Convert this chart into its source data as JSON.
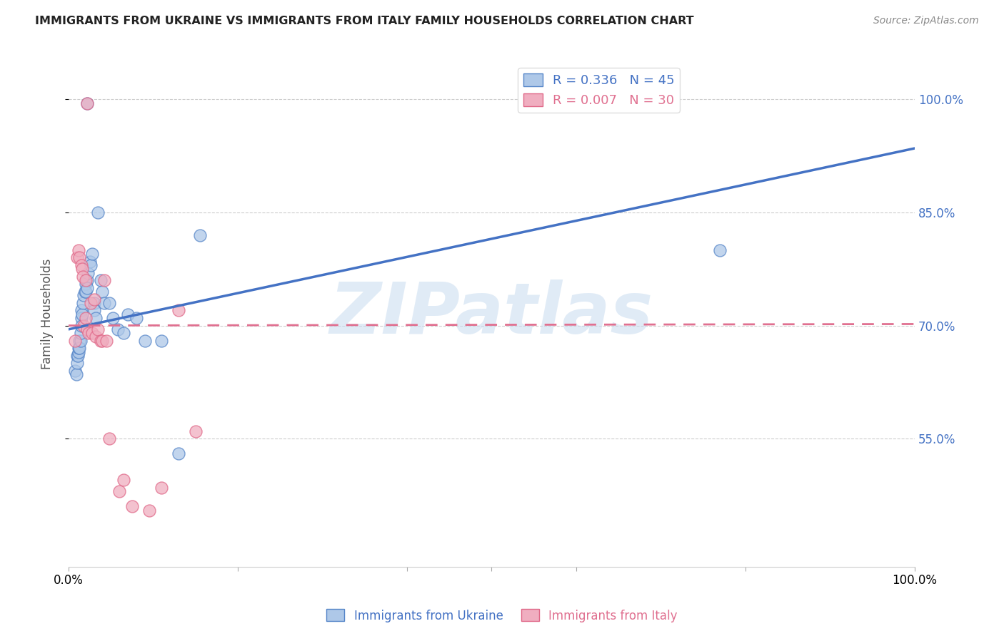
{
  "title": "IMMIGRANTS FROM UKRAINE VS IMMIGRANTS FROM ITALY FAMILY HOUSEHOLDS CORRELATION CHART",
  "source": "Source: ZipAtlas.com",
  "ylabel": "Family Households",
  "ytick_labels": [
    "100.0%",
    "85.0%",
    "70.0%",
    "55.0%"
  ],
  "ytick_vals": [
    1.0,
    0.85,
    0.7,
    0.55
  ],
  "xlim": [
    0.0,
    1.0
  ],
  "ylim": [
    0.38,
    1.05
  ],
  "watermark": "ZIPatlas",
  "ukraine_color": "#aec8e8",
  "italy_color": "#f0aec0",
  "ukraine_edge_color": "#5585c8",
  "italy_edge_color": "#e06888",
  "ukraine_line_color": "#4472c4",
  "italy_line_color": "#e07090",
  "ukraine_R": 0.336,
  "ukraine_N": 45,
  "italy_R": 0.007,
  "italy_N": 30,
  "ukraine_line_x0": 0.0,
  "ukraine_line_y0": 0.695,
  "ukraine_line_x1": 1.0,
  "ukraine_line_y1": 0.935,
  "italy_line_x0": 0.0,
  "italy_line_y0": 0.7,
  "italy_line_x1": 1.0,
  "italy_line_y1": 0.702,
  "ukraine_scatter_x": [
    0.008,
    0.009,
    0.01,
    0.01,
    0.011,
    0.012,
    0.012,
    0.013,
    0.013,
    0.014,
    0.014,
    0.015,
    0.015,
    0.015,
    0.016,
    0.017,
    0.018,
    0.019,
    0.02,
    0.02,
    0.022,
    0.022,
    0.023,
    0.025,
    0.026,
    0.028,
    0.03,
    0.03,
    0.032,
    0.035,
    0.038,
    0.04,
    0.042,
    0.048,
    0.052,
    0.058,
    0.065,
    0.07,
    0.08,
    0.09,
    0.11,
    0.13,
    0.155,
    0.77,
    0.022
  ],
  "ukraine_scatter_y": [
    0.64,
    0.635,
    0.66,
    0.65,
    0.66,
    0.665,
    0.67,
    0.68,
    0.67,
    0.68,
    0.69,
    0.72,
    0.71,
    0.7,
    0.715,
    0.73,
    0.74,
    0.745,
    0.755,
    0.745,
    0.76,
    0.75,
    0.77,
    0.785,
    0.78,
    0.795,
    0.73,
    0.72,
    0.71,
    0.85,
    0.76,
    0.745,
    0.73,
    0.73,
    0.71,
    0.695,
    0.69,
    0.715,
    0.71,
    0.68,
    0.68,
    0.53,
    0.82,
    0.8,
    0.995
  ],
  "italy_scatter_x": [
    0.008,
    0.01,
    0.012,
    0.013,
    0.015,
    0.016,
    0.017,
    0.018,
    0.02,
    0.02,
    0.022,
    0.024,
    0.026,
    0.028,
    0.03,
    0.032,
    0.035,
    0.038,
    0.04,
    0.042,
    0.045,
    0.048,
    0.06,
    0.065,
    0.075,
    0.095,
    0.11,
    0.13,
    0.15,
    0.022
  ],
  "italy_scatter_y": [
    0.68,
    0.79,
    0.8,
    0.79,
    0.78,
    0.775,
    0.765,
    0.7,
    0.71,
    0.76,
    0.695,
    0.69,
    0.73,
    0.69,
    0.735,
    0.685,
    0.695,
    0.68,
    0.68,
    0.76,
    0.68,
    0.55,
    0.48,
    0.495,
    0.46,
    0.455,
    0.485,
    0.72,
    0.56,
    0.995
  ]
}
